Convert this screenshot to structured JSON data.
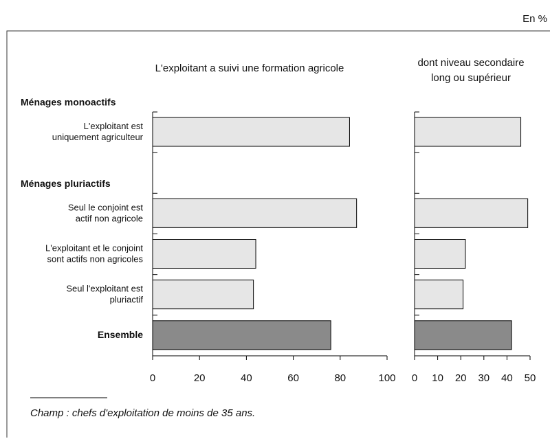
{
  "unit_note": "En %",
  "note": "Champ : chefs d'exploitation de moins de 35 ans.",
  "chart_data": [
    {
      "type": "hbar",
      "title": [
        "L'exploitant a suivi une formation agricole"
      ],
      "groups": [
        {
          "label": "Ménages monoactifs",
          "first": 0
        },
        {
          "label": "Ménages pluriactifs",
          "first": 2
        }
      ],
      "categories": [
        [
          "L'exploitant est",
          "uniquement agriculteur"
        ],
        null,
        [
          "Seul le conjoint est",
          "actif non agricole"
        ],
        [
          "L'exploitant et le conjoint",
          "sont actifs non agricoles"
        ],
        [
          "Seul l'exploitant est",
          "pluriactif"
        ],
        [
          "Ensemble"
        ]
      ],
      "values": [
        84,
        null,
        87,
        44,
        43,
        76
      ],
      "colors": [
        "#e6e6e6",
        null,
        "#e6e6e6",
        "#e6e6e6",
        "#e6e6e6",
        "#8a8a8a"
      ],
      "xlim": [
        0,
        100
      ],
      "xticks": [
        0,
        20,
        40,
        60,
        80,
        100
      ]
    },
    {
      "type": "hbar",
      "title": [
        "dont niveau secondaire",
        "long ou supérieur"
      ],
      "values": [
        46,
        null,
        49,
        22,
        21,
        42
      ],
      "colors": [
        "#e6e6e6",
        null,
        "#e6e6e6",
        "#e6e6e6",
        "#e6e6e6",
        "#8a8a8a"
      ],
      "xlim": [
        0,
        50
      ],
      "xticks": [
        0,
        10,
        20,
        30,
        40,
        50
      ]
    }
  ]
}
